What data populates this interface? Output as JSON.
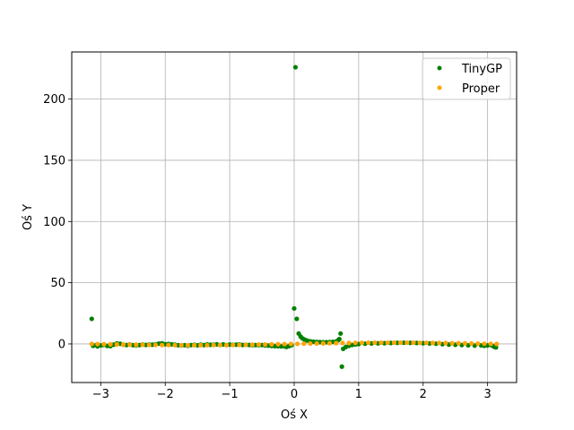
{
  "chart_data": {
    "type": "scatter",
    "title": "",
    "xlabel": "Oś X",
    "ylabel": "Oś Y",
    "xlim": [
      -3.45,
      3.45
    ],
    "ylim": [
      -31.5,
      238.5
    ],
    "x_ticks": [
      -3,
      -2,
      -1,
      0,
      1,
      2,
      3
    ],
    "y_ticks": [
      0,
      50,
      100,
      150,
      200
    ],
    "x_tick_labels": [
      "−3",
      "−2",
      "−1",
      "0",
      "1",
      "2",
      "3"
    ],
    "y_tick_labels": [
      "0",
      "50",
      "100",
      "150",
      "200"
    ],
    "grid": true,
    "legend_position": "top-right",
    "series": [
      {
        "name": "TinyGP",
        "color": "#008000",
        "points": [
          [
            -3.14,
            20.5
          ],
          [
            -3.12,
            -1.5
          ],
          [
            -3.08,
            -1.0
          ],
          [
            -3.05,
            -2.0
          ],
          [
            -3.0,
            -1.2
          ],
          [
            -2.96,
            -0.8
          ],
          [
            -2.9,
            -1.6
          ],
          [
            -2.85,
            -1.8
          ],
          [
            -2.8,
            -0.6
          ],
          [
            -2.75,
            0.4
          ],
          [
            -2.7,
            0.2
          ],
          [
            -2.65,
            -0.6
          ],
          [
            -2.6,
            -0.9
          ],
          [
            -2.55,
            -0.4
          ],
          [
            -2.5,
            -1.0
          ],
          [
            -2.45,
            -1.1
          ],
          [
            -2.4,
            -0.9
          ],
          [
            -2.35,
            -0.5
          ],
          [
            -2.3,
            -0.8
          ],
          [
            -2.25,
            -0.5
          ],
          [
            -2.2,
            -0.6
          ],
          [
            -2.15,
            -0.4
          ],
          [
            -2.1,
            0.3
          ],
          [
            -2.05,
            0.5
          ],
          [
            -2.0,
            -0.2
          ],
          [
            -1.95,
            0.0
          ],
          [
            -1.9,
            -0.3
          ],
          [
            -1.85,
            -0.6
          ],
          [
            -1.8,
            -1.0
          ],
          [
            -1.75,
            -1.2
          ],
          [
            -1.7,
            -1.0
          ],
          [
            -1.65,
            -1.4
          ],
          [
            -1.6,
            -0.9
          ],
          [
            -1.55,
            -0.7
          ],
          [
            -1.5,
            -1.1
          ],
          [
            -1.45,
            -0.6
          ],
          [
            -1.4,
            -0.9
          ],
          [
            -1.35,
            -0.4
          ],
          [
            -1.3,
            -0.7
          ],
          [
            -1.25,
            -0.6
          ],
          [
            -1.2,
            -0.3
          ],
          [
            -1.15,
            -0.8
          ],
          [
            -1.1,
            -0.4
          ],
          [
            -1.05,
            -0.9
          ],
          [
            -1.0,
            -0.5
          ],
          [
            -0.95,
            -0.7
          ],
          [
            -0.9,
            -0.6
          ],
          [
            -0.85,
            -0.4
          ],
          [
            -0.8,
            -0.8
          ],
          [
            -0.75,
            -0.7
          ],
          [
            -0.7,
            -0.8
          ],
          [
            -0.65,
            -1.0
          ],
          [
            -0.6,
            -0.9
          ],
          [
            -0.55,
            -1.0
          ],
          [
            -0.5,
            -0.9
          ],
          [
            -0.45,
            -1.2
          ],
          [
            -0.4,
            -1.3
          ],
          [
            -0.35,
            -1.6
          ],
          [
            -0.3,
            -1.8
          ],
          [
            -0.25,
            -1.9
          ],
          [
            -0.2,
            -2.0
          ],
          [
            -0.15,
            -2.0
          ],
          [
            -0.12,
            -2.4
          ],
          [
            -0.08,
            -1.8
          ],
          [
            -0.04,
            -1.0
          ],
          [
            0.0,
            29.0
          ],
          [
            0.02,
            226.0
          ],
          [
            0.04,
            20.5
          ],
          [
            0.07,
            8.5
          ],
          [
            0.1,
            6.0
          ],
          [
            0.13,
            4.5
          ],
          [
            0.16,
            3.6
          ],
          [
            0.2,
            2.8
          ],
          [
            0.25,
            2.2
          ],
          [
            0.3,
            1.8
          ],
          [
            0.35,
            1.6
          ],
          [
            0.4,
            1.5
          ],
          [
            0.45,
            1.4
          ],
          [
            0.5,
            1.4
          ],
          [
            0.55,
            1.5
          ],
          [
            0.6,
            1.7
          ],
          [
            0.65,
            2.0
          ],
          [
            0.68,
            3.0
          ],
          [
            0.7,
            4.0
          ],
          [
            0.72,
            8.5
          ],
          [
            0.74,
            -18.5
          ],
          [
            0.76,
            -4.0
          ],
          [
            0.8,
            -2.5
          ],
          [
            0.85,
            -1.5
          ],
          [
            0.9,
            -0.8
          ],
          [
            0.95,
            -0.4
          ],
          [
            1.0,
            -0.1
          ],
          [
            1.1,
            0.2
          ],
          [
            1.2,
            0.4
          ],
          [
            1.3,
            0.5
          ],
          [
            1.4,
            0.6
          ],
          [
            1.5,
            0.8
          ],
          [
            1.6,
            0.9
          ],
          [
            1.7,
            1.0
          ],
          [
            1.8,
            0.9
          ],
          [
            1.9,
            0.8
          ],
          [
            2.0,
            0.6
          ],
          [
            2.1,
            0.4
          ],
          [
            2.2,
            0.2
          ],
          [
            2.3,
            -0.2
          ],
          [
            2.4,
            -0.5
          ],
          [
            2.5,
            -0.7
          ],
          [
            2.6,
            -0.9
          ],
          [
            2.7,
            -1.1
          ],
          [
            2.8,
            -1.3
          ],
          [
            2.9,
            -1.2
          ],
          [
            2.95,
            -1.5
          ],
          [
            3.0,
            -1.2
          ],
          [
            3.05,
            -0.8
          ],
          [
            3.08,
            -1.6
          ],
          [
            3.11,
            -2.5
          ],
          [
            3.13,
            -2.8
          ]
        ]
      },
      {
        "name": "Proper",
        "color": "#ffa500",
        "points": [
          [
            -3.14,
            0.0
          ],
          [
            -3.05,
            -0.1
          ],
          [
            -2.95,
            -0.2
          ],
          [
            -2.85,
            -0.3
          ],
          [
            -2.75,
            -0.4
          ],
          [
            -2.65,
            -0.5
          ],
          [
            -2.55,
            -0.6
          ],
          [
            -2.45,
            -0.6
          ],
          [
            -2.35,
            -0.7
          ],
          [
            -2.25,
            -0.8
          ],
          [
            -2.15,
            -0.8
          ],
          [
            -2.05,
            -0.9
          ],
          [
            -1.95,
            -0.9
          ],
          [
            -1.85,
            -1.0
          ],
          [
            -1.75,
            -1.0
          ],
          [
            -1.65,
            -1.0
          ],
          [
            -1.55,
            -1.0
          ],
          [
            -1.45,
            -1.0
          ],
          [
            -1.35,
            -1.0
          ],
          [
            -1.25,
            -0.9
          ],
          [
            -1.15,
            -0.9
          ],
          [
            -1.05,
            -0.9
          ],
          [
            -0.95,
            -0.8
          ],
          [
            -0.85,
            -0.8
          ],
          [
            -0.75,
            -0.7
          ],
          [
            -0.65,
            -0.6
          ],
          [
            -0.55,
            -0.5
          ],
          [
            -0.45,
            -0.4
          ],
          [
            -0.35,
            -0.3
          ],
          [
            -0.25,
            -0.2
          ],
          [
            -0.15,
            -0.1
          ],
          [
            -0.05,
            0.0
          ],
          [
            0.05,
            0.1
          ],
          [
            0.15,
            0.2
          ],
          [
            0.25,
            0.3
          ],
          [
            0.35,
            0.4
          ],
          [
            0.45,
            0.5
          ],
          [
            0.55,
            0.6
          ],
          [
            0.65,
            0.7
          ],
          [
            0.75,
            0.8
          ],
          [
            0.85,
            0.8
          ],
          [
            0.95,
            0.9
          ],
          [
            1.05,
            0.9
          ],
          [
            1.15,
            1.0
          ],
          [
            1.25,
            1.0
          ],
          [
            1.35,
            1.0
          ],
          [
            1.45,
            1.0
          ],
          [
            1.55,
            1.0
          ],
          [
            1.65,
            1.0
          ],
          [
            1.75,
            1.0
          ],
          [
            1.85,
            1.0
          ],
          [
            1.95,
            0.9
          ],
          [
            2.05,
            0.9
          ],
          [
            2.15,
            0.8
          ],
          [
            2.25,
            0.8
          ],
          [
            2.35,
            0.7
          ],
          [
            2.45,
            0.6
          ],
          [
            2.55,
            0.6
          ],
          [
            2.65,
            0.5
          ],
          [
            2.75,
            0.4
          ],
          [
            2.85,
            0.3
          ],
          [
            2.95,
            0.2
          ],
          [
            3.05,
            0.1
          ],
          [
            3.14,
            0.0
          ]
        ]
      }
    ]
  }
}
